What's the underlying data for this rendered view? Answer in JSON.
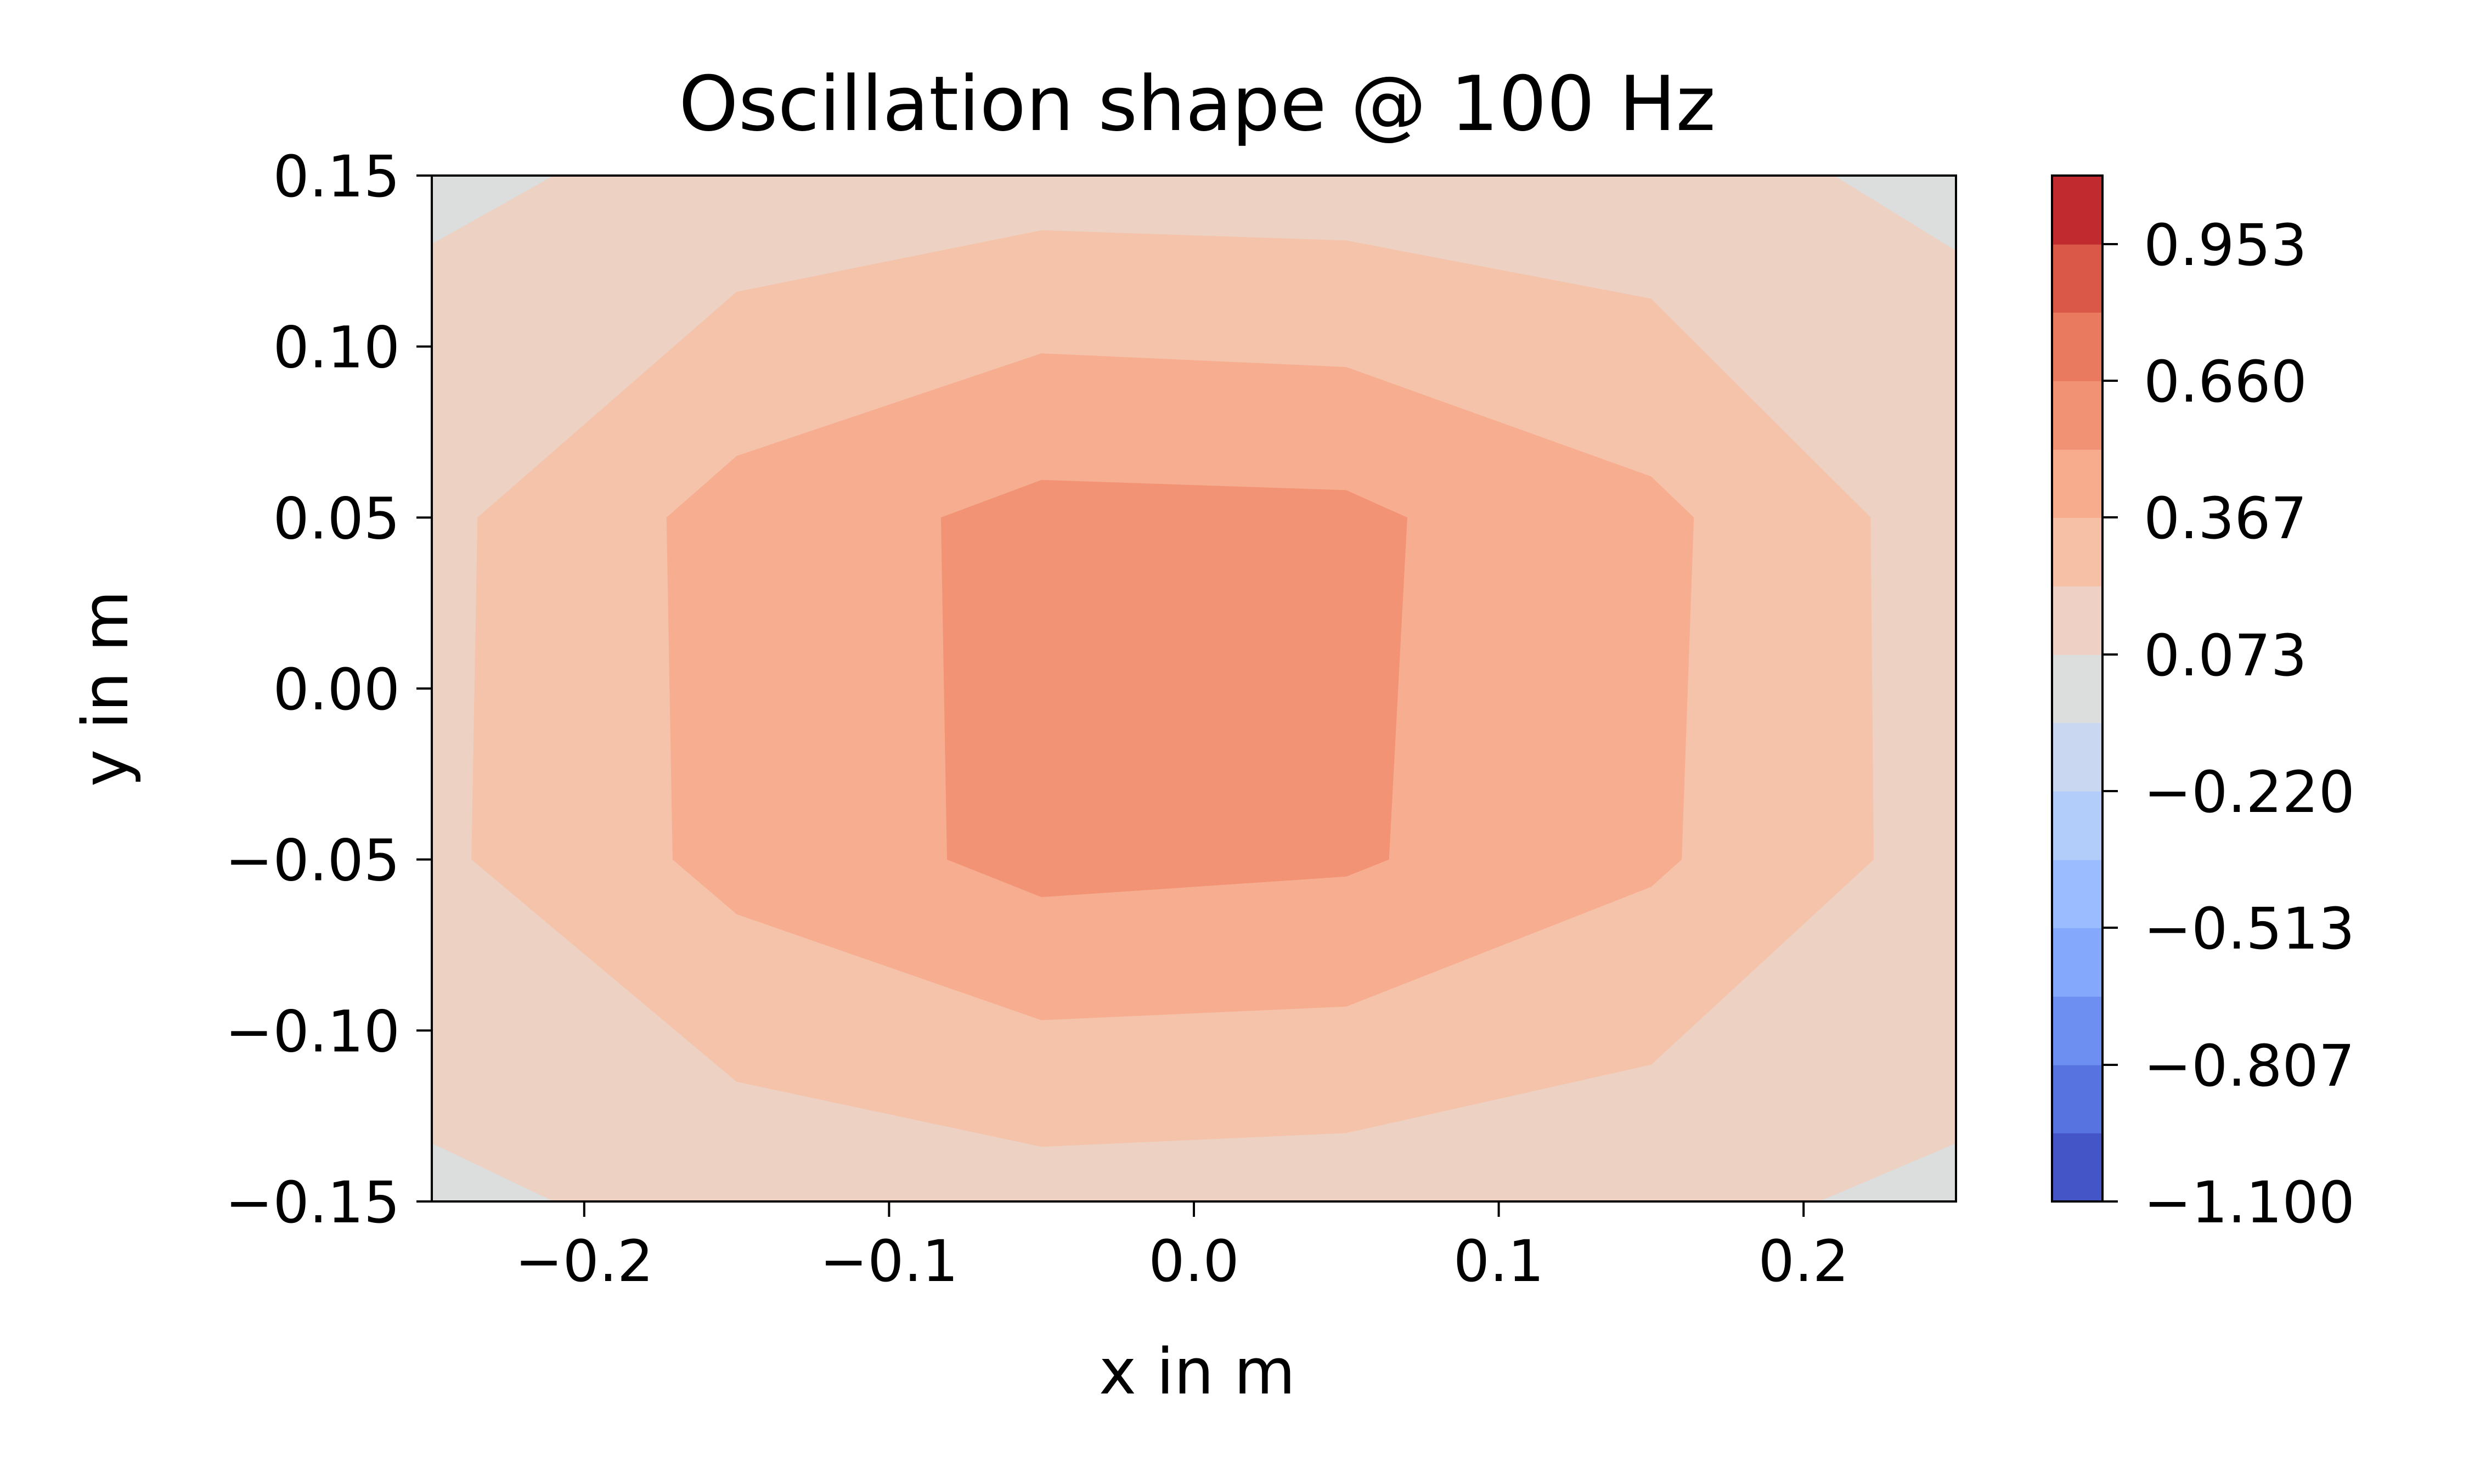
{
  "chart_data": {
    "type": "contour",
    "title": "Oscillation shape @ 100 Hz",
    "xlabel": "x in m",
    "ylabel": "y in m",
    "xlim": [
      -0.25,
      0.25
    ],
    "ylim": [
      -0.15,
      0.15
    ],
    "xticks": [
      -0.2,
      -0.1,
      0.0,
      0.1,
      0.2
    ],
    "xtick_labels": [
      "−0.2",
      "−0.1",
      "0.0",
      "0.1",
      "0.2"
    ],
    "yticks": [
      0.15,
      0.1,
      0.05,
      0.0,
      -0.05,
      -0.1,
      -0.15
    ],
    "ytick_labels": [
      "0.15",
      "0.10",
      "0.05",
      "0.00",
      "−0.05",
      "−0.10",
      "−0.15"
    ],
    "colormap": "coolwarm",
    "colorbar": {
      "range": [
        -1.1,
        1.1
      ],
      "ticks": [
        -1.1,
        -0.807,
        -0.513,
        -0.22,
        0.073,
        0.367,
        0.66,
        0.953
      ],
      "tick_labels": [
        "−1.100",
        "−0.807",
        "−0.513",
        "−0.220",
        "0.073",
        "0.367",
        "0.660",
        "0.953"
      ],
      "levels": [
        -1.1,
        -0.953,
        -0.807,
        -0.66,
        -0.513,
        -0.367,
        -0.22,
        -0.073,
        0.073,
        0.22,
        0.367,
        0.513,
        0.66,
        0.807,
        0.953,
        1.1
      ],
      "colors": [
        "#4456c7",
        "#5673e0",
        "#6c8ff1",
        "#83a8fc",
        "#9bbcff",
        "#b3cdfb",
        "#c9d7f0",
        "#dcdddd",
        "#eed1c4",
        "#f5c0a6",
        "#f7ac8e",
        "#f29274",
        "#e97a5f",
        "#d95847",
        "#c12b30"
      ]
    },
    "grid": false,
    "fill_colors": {
      "background": "#dcdddd",
      "level_1": "#edd1c2",
      "level_2": "#f5c2aa",
      "level_3": "#f7ad8f",
      "level_4": "#f19374"
    },
    "contours": [
      {
        "level": "0.073 – 0.220",
        "color_key": "level_1",
        "points": [
          [
            -0.25,
            0.13
          ],
          [
            -0.21,
            0.15
          ],
          [
            0.21,
            0.15
          ],
          [
            0.25,
            0.128
          ],
          [
            0.25,
            -0.133
          ],
          [
            0.205,
            -0.15
          ],
          [
            -0.21,
            -0.15
          ],
          [
            -0.25,
            -0.133
          ]
        ]
      },
      {
        "level": "0.220 – 0.367",
        "color_key": "level_2",
        "points": [
          [
            -0.235,
            0.05
          ],
          [
            -0.15,
            0.116
          ],
          [
            -0.05,
            0.134
          ],
          [
            0.05,
            0.131
          ],
          [
            0.15,
            0.114
          ],
          [
            0.222,
            0.05
          ],
          [
            0.223,
            -0.05
          ],
          [
            0.15,
            -0.11
          ],
          [
            0.05,
            -0.13
          ],
          [
            -0.05,
            -0.134
          ],
          [
            -0.15,
            -0.115
          ],
          [
            -0.237,
            -0.05
          ]
        ]
      },
      {
        "level": "0.367 – 0.513",
        "color_key": "level_3",
        "points": [
          [
            -0.173,
            0.05
          ],
          [
            -0.15,
            0.068
          ],
          [
            -0.05,
            0.098
          ],
          [
            0.05,
            0.094
          ],
          [
            0.15,
            0.062
          ],
          [
            0.164,
            0.05
          ],
          [
            0.16,
            -0.05
          ],
          [
            0.15,
            -0.058
          ],
          [
            0.05,
            -0.093
          ],
          [
            -0.05,
            -0.097
          ],
          [
            -0.15,
            -0.066
          ],
          [
            -0.171,
            -0.05
          ]
        ]
      },
      {
        "level": "0.513 – 0.660",
        "color_key": "level_4",
        "points": [
          [
            -0.083,
            0.05
          ],
          [
            -0.05,
            0.061
          ],
          [
            0.05,
            0.058
          ],
          [
            0.07,
            0.05
          ],
          [
            0.064,
            -0.05
          ],
          [
            0.05,
            -0.055
          ],
          [
            -0.05,
            -0.061
          ],
          [
            -0.081,
            -0.05
          ]
        ]
      }
    ]
  }
}
